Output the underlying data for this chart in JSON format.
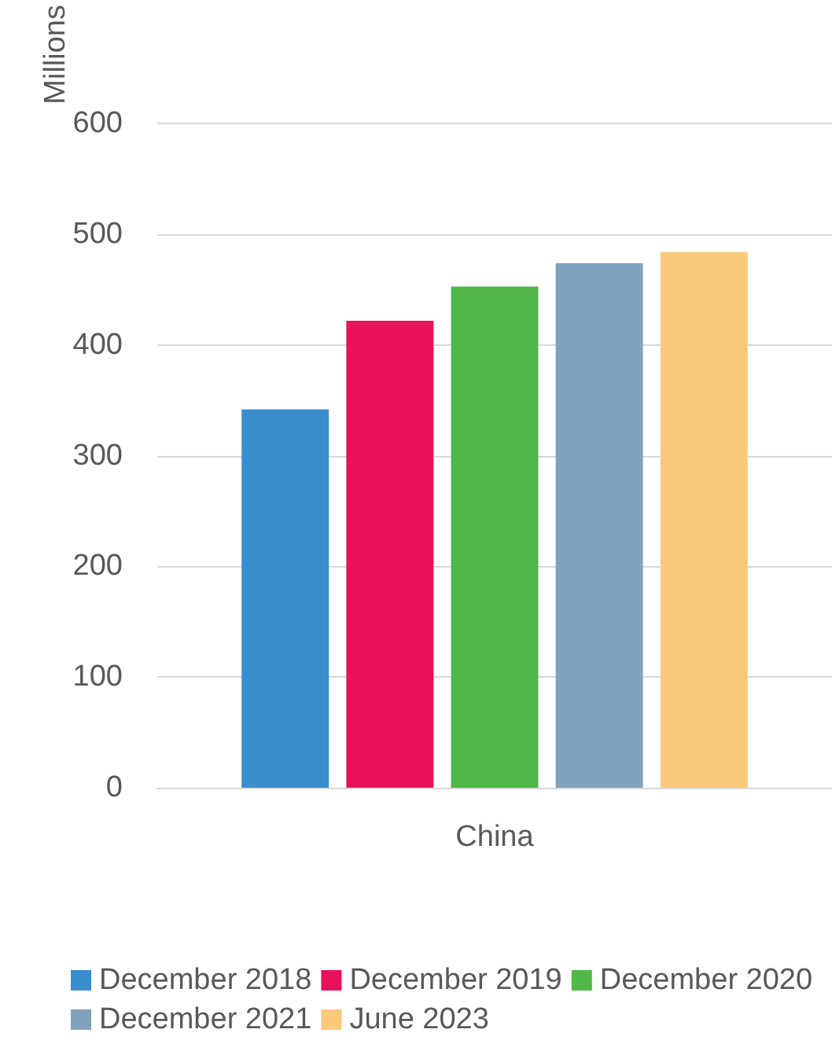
{
  "chart_data": {
    "type": "bar",
    "ylabel": "Millions",
    "categories": [
      "China"
    ],
    "series": [
      {
        "name": "December 2018",
        "color": "#3a8ecd",
        "values": [
          342
        ]
      },
      {
        "name": "December 2019",
        "color": "#e8125c",
        "values": [
          422
        ]
      },
      {
        "name": "December 2020",
        "color": "#51b748",
        "values": [
          453
        ]
      },
      {
        "name": "December 2021",
        "color": "#7fa3bb",
        "values": [
          474
        ]
      },
      {
        "name": "June 2023",
        "color": "#fbc97a",
        "values": [
          484
        ]
      }
    ],
    "ylim": [
      0,
      600
    ],
    "yticks": [
      0,
      100,
      200,
      300,
      400,
      500,
      600
    ],
    "grid": "y",
    "legend": "bottom"
  }
}
